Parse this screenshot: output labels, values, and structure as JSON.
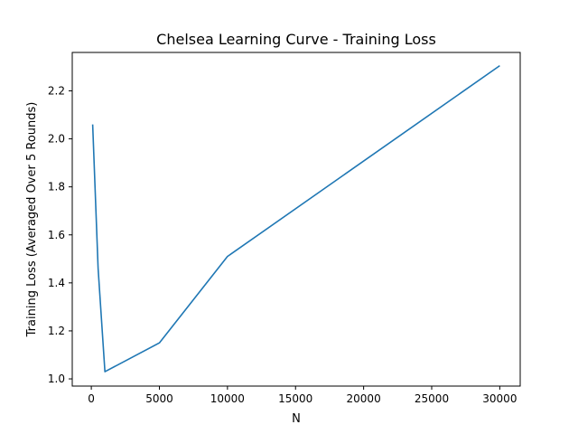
{
  "chart_data": {
    "type": "line",
    "title": "Chelsea Learning Curve - Training Loss",
    "xlabel": "N",
    "ylabel": "Training Loss (Averaged Over 5 Rounds)",
    "xlim": [
      -1400,
      31500
    ],
    "ylim": [
      0.97,
      2.36
    ],
    "xticks": [
      0,
      5000,
      10000,
      15000,
      20000,
      25000,
      30000
    ],
    "yticks": [
      1.0,
      1.2,
      1.4,
      1.6,
      1.8,
      2.0,
      2.2
    ],
    "ytick_labels": [
      "1.0",
      "1.2",
      "1.4",
      "1.6",
      "1.8",
      "2.0",
      "2.2"
    ],
    "grid": false,
    "series": [
      {
        "color": "#1f77b4",
        "x": [
          100,
          500,
          1000,
          5000,
          10000,
          30000
        ],
        "y": [
          2.06,
          1.46,
          1.03,
          1.15,
          1.51,
          2.305
        ]
      }
    ]
  }
}
